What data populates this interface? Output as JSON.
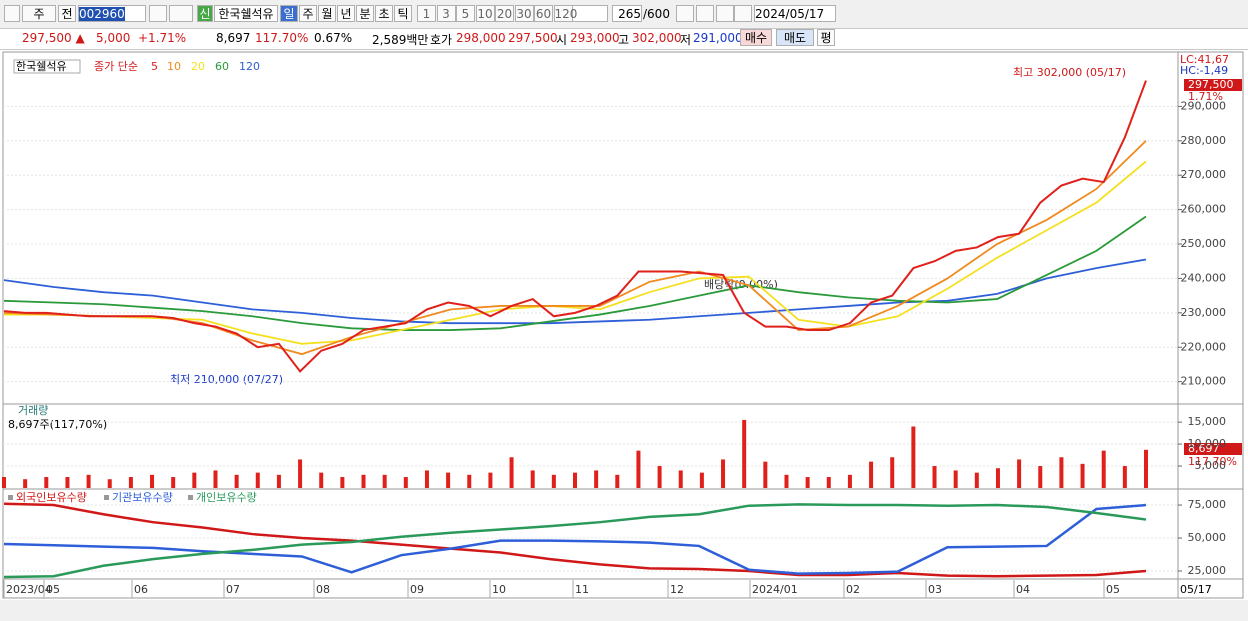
{
  "toolbar": {
    "period": "주",
    "prev": "전",
    "code": "002960",
    "badge": "신",
    "name": "한국쉘석유",
    "tabs": [
      "일",
      "주",
      "월",
      "년",
      "분",
      "초",
      "틱"
    ],
    "counts": [
      "1",
      "3",
      "5",
      "10",
      "20",
      "30",
      "60",
      "120"
    ],
    "shown": "265",
    "total": "/600",
    "date": "2024/05/17"
  },
  "quote": {
    "price": "297,500 ▲",
    "change": "5,000",
    "rate": "+1.71%",
    "volume": "8,697",
    "volume_rate": "117.70%",
    "turnover": "0.67%",
    "amount": "2,589백만",
    "ask_label": "호가",
    "ask": "298,000",
    "bid": "297,500",
    "open_label": "시",
    "open": "293,000",
    "high_label": "고",
    "high": "302,000",
    "low_label": "저",
    "low": "291,000",
    "buy": "매수",
    "sell": "매도",
    "eval": "평"
  },
  "price_panel": {
    "name": "한국쉘석유",
    "ma_label": "종가 단순",
    "ylim": [
      203800,
      305800
    ],
    "yticks": [
      {
        "value": 210000,
        "label": "210,000"
      },
      {
        "value": 220000,
        "label": "220,000"
      },
      {
        "value": 230000,
        "label": "230,000"
      },
      {
        "value": 240000,
        "label": "240,000"
      },
      {
        "value": 250000,
        "label": "250,000"
      },
      {
        "value": 260000,
        "label": "260,000"
      },
      {
        "value": 270000,
        "label": "270,000"
      },
      {
        "value": 280000,
        "label": "280,000"
      },
      {
        "value": 290000,
        "label": "290,000"
      }
    ],
    "series": [
      {
        "name": "5",
        "color": "#e0201b",
        "values": [
          230500,
          230000,
          230000,
          229500,
          229000,
          229000,
          229000,
          229000,
          228500,
          227000,
          226000,
          224000,
          220000,
          221000,
          213000,
          219000,
          221000,
          225000,
          226000,
          227000,
          231000,
          233000,
          232000,
          229000,
          232000,
          234000,
          229000,
          230000,
          232000,
          235000,
          242000,
          242000,
          242000,
          241500,
          241000,
          230000,
          226000,
          226000,
          225000,
          225000,
          227000,
          233000,
          235000,
          243000,
          245000,
          248000,
          249000,
          252000,
          253000,
          262000,
          267000,
          269000,
          268000,
          281000,
          297500
        ]
      },
      {
        "name": "10",
        "color": "#f08a1e",
        "values": [
          230000,
          229500,
          229000,
          229000,
          227000,
          222000,
          218000,
          223000,
          227000,
          231000,
          232000,
          232000,
          232000,
          239000,
          242000,
          238000,
          225000,
          226000,
          232000,
          240000,
          250000,
          257000,
          266000,
          280000
        ]
      },
      {
        "name": "20",
        "color": "#f5e020",
        "values": [
          229500,
          229500,
          229000,
          228500,
          228000,
          224000,
          221000,
          222000,
          225000,
          228000,
          231000,
          232000,
          231000,
          236000,
          240000,
          240500,
          228000,
          226000,
          229000,
          237000,
          246000,
          254000,
          262000,
          274000
        ]
      },
      {
        "name": "60",
        "color": "#2a9a3a",
        "values": [
          233500,
          233000,
          232500,
          231500,
          230500,
          229000,
          227000,
          225500,
          225000,
          225000,
          225500,
          227500,
          229500,
          232000,
          235000,
          238000,
          236000,
          234500,
          233500,
          233000,
          234000,
          241000,
          248000,
          258000
        ]
      },
      {
        "name": "120",
        "color": "#2e5fd8",
        "values": [
          239500,
          237500,
          236000,
          235000,
          233000,
          231000,
          230000,
          228500,
          227500,
          227000,
          227000,
          227000,
          227500,
          228000,
          229000,
          230000,
          231000,
          232000,
          233000,
          233500,
          235500,
          240000,
          243000,
          245500
        ]
      }
    ],
    "high_note": "최고 302,000 (05/17)",
    "low_note": "최저 210,000 (07/27)",
    "dividend_note": "배당락(0.00%)",
    "lc": "LC:41,67",
    "hc": "HC:-1,49",
    "last": "297,500",
    "last_rate": "1.71%"
  },
  "volume_panel": {
    "name": "거래량",
    "note": "8,697주(117,70%)",
    "ylim": [
      0,
      18900
    ],
    "color": "#e0201b",
    "yticks": [
      {
        "value": 5000,
        "label": "5,000"
      },
      {
        "value": 10000,
        "label": "10,000"
      },
      {
        "value": 15000,
        "label": "15,000"
      }
    ],
    "values": [
      2500,
      2000,
      2500,
      2500,
      3000,
      2000,
      2500,
      3000,
      2500,
      3500,
      4000,
      3000,
      3500,
      3000,
      6500,
      3500,
      2500,
      3000,
      3000,
      2500,
      4000,
      3500,
      3000,
      3500,
      7000,
      4000,
      3000,
      3500,
      4000,
      3000,
      8500,
      5000,
      4000,
      3500,
      6500,
      15500,
      6000,
      3000,
      2500,
      2500,
      3000,
      6000,
      7000,
      14000,
      5000,
      4000,
      3500,
      4500,
      6500,
      5000,
      7000,
      5500,
      8500,
      5000,
      8697
    ],
    "last": "8,697",
    "last_rate": "117.70%"
  },
  "holding_panel": {
    "ylim": [
      19700,
      86400
    ],
    "yticks": [
      {
        "value": 25000,
        "label": "25,000"
      },
      {
        "value": 50000,
        "label": "50,000"
      },
      {
        "value": 75000,
        "label": "75,000"
      }
    ],
    "series": [
      {
        "name": "외국인보유수량",
        "color": "#d01818",
        "values": [
          76000,
          75000,
          68000,
          62000,
          58000,
          53000,
          50000,
          48000,
          45000,
          42000,
          39000,
          34000,
          30000,
          27000,
          26500,
          25000,
          22000,
          22000,
          23500,
          21500,
          21000,
          21500,
          22000,
          25000
        ]
      },
      {
        "name": "기관보유수량",
        "color": "#2e5fd8",
        "values": [
          45500,
          44500,
          43500,
          42500,
          40000,
          38000,
          36000,
          24000,
          37000,
          42000,
          48000,
          48000,
          47500,
          46500,
          44000,
          26000,
          23000,
          23500,
          24500,
          43000,
          43500,
          44000,
          72000,
          75000
        ]
      },
      {
        "name": "개인보유수량",
        "color": "#2a9a5a",
        "values": [
          20500,
          21000,
          29000,
          34000,
          38000,
          41000,
          45000,
          47000,
          51000,
          54000,
          56500,
          59000,
          62000,
          66000,
          68000,
          74500,
          75500,
          75000,
          75000,
          74500,
          75000,
          73500,
          69000,
          64000
        ]
      }
    ]
  },
  "x_axis": {
    "labels": [
      "2023/04",
      "05",
      "06",
      "07",
      "08",
      "09",
      "10",
      "11",
      "12",
      "2024/01",
      "02",
      "03",
      "04",
      "05"
    ],
    "end": "05/17"
  }
}
